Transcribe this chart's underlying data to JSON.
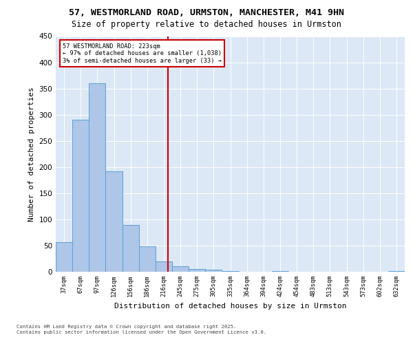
{
  "title_line1": "57, WESTMORLAND ROAD, URMSTON, MANCHESTER, M41 9HN",
  "title_line2": "Size of property relative to detached houses in Urmston",
  "xlabel": "Distribution of detached houses by size in Urmston",
  "ylabel": "Number of detached properties",
  "footnote": "Contains HM Land Registry data © Crown copyright and database right 2025.\nContains public sector information licensed under the Open Government Licence v3.0.",
  "bin_labels": [
    "37sqm",
    "67sqm",
    "97sqm",
    "126sqm",
    "156sqm",
    "186sqm",
    "216sqm",
    "245sqm",
    "275sqm",
    "305sqm",
    "335sqm",
    "364sqm",
    "394sqm",
    "424sqm",
    "454sqm",
    "483sqm",
    "513sqm",
    "543sqm",
    "573sqm",
    "602sqm",
    "632sqm"
  ],
  "bar_values": [
    57,
    290,
    360,
    192,
    90,
    48,
    20,
    10,
    5,
    4,
    1,
    0,
    0,
    1,
    0,
    0,
    0,
    0,
    0,
    0,
    1
  ],
  "bar_color": "#aec6e8",
  "bar_edgecolor": "#5a9fd4",
  "bin_edges_sqm": [
    37,
    67,
    97,
    126,
    156,
    186,
    216,
    245,
    275,
    305,
    335,
    364,
    394,
    424,
    454,
    483,
    513,
    543,
    573,
    602,
    632
  ],
  "subject_sqm": 223,
  "annotation_title": "57 WESTMORLAND ROAD: 223sqm",
  "annotation_line2": "← 97% of detached houses are smaller (1,038)",
  "annotation_line3": "3% of semi-detached houses are larger (33) →",
  "annotation_box_edgecolor": "#cc0000",
  "subject_line_color": "#cc0000",
  "ylim": [
    0,
    450
  ],
  "yticks": [
    0,
    50,
    100,
    150,
    200,
    250,
    300,
    350,
    400,
    450
  ],
  "plot_bg_color": "#dce8f5",
  "fig_bg_color": "#ffffff",
  "grid_color": "#ffffff"
}
